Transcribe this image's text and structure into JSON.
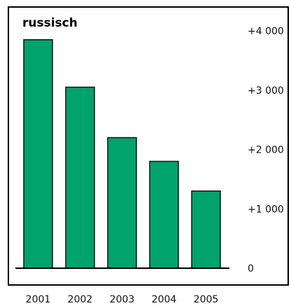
{
  "chart_data": {
    "type": "bar",
    "title": "russisch",
    "categories": [
      "2001",
      "2002",
      "2003",
      "2004",
      "2005"
    ],
    "values": [
      3850,
      3050,
      2200,
      1800,
      1300
    ],
    "ylim": [
      0,
      4000
    ],
    "yticks": [
      "0",
      "+1 000",
      "+2 000",
      "+3 000",
      "+4 000"
    ],
    "ytick_values": [
      0,
      1000,
      2000,
      3000,
      4000
    ],
    "grid": false,
    "colors": {
      "bar": "#00a36c",
      "bar_stroke": "#111111",
      "frame": "#000000"
    }
  }
}
